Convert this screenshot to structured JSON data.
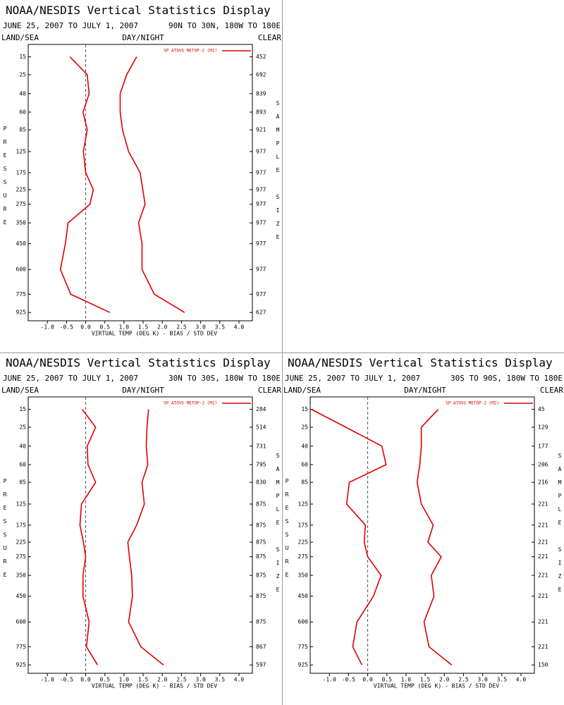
{
  "chart_data": [
    {
      "type": "line",
      "title": "NOAA/NESDIS Vertical Statistics Display",
      "subtitle": "JUNE 25, 2007 TO JULY 1, 2007",
      "region": "90N TO 30N, 180W TO 180E",
      "left_header": "LAND/SEA",
      "center_header": "DAY/NIGHT",
      "right_header": "CLEAR",
      "y_label": "PRESSURE",
      "y2_label": "SAMPLE SIZE",
      "x_label": "VIRTUAL TEMP (DEG K) - BIAS / STD DEV",
      "y": [
        15,
        25,
        40,
        60,
        85,
        125,
        175,
        225,
        275,
        350,
        450,
        600,
        775,
        925
      ],
      "sample_size": [
        452,
        692,
        839,
        893,
        921,
        977,
        977,
        977,
        977,
        977,
        977,
        977,
        977,
        627
      ],
      "series": [
        {
          "name": "SP ATOVS METOP-2 (M2)",
          "color": "#dd0000",
          "values": [
            -0.41,
            0.04,
            0.09,
            -0.07,
            0.04,
            -0.06,
            0.0,
            0.2,
            0.11,
            -0.46,
            -0.53,
            -0.66,
            -0.39,
            0.63
          ]
        },
        {
          "color": "#dd0000",
          "values": [
            1.33,
            1.07,
            0.9,
            0.9,
            0.96,
            1.12,
            1.42,
            1.49,
            1.55,
            1.38,
            1.47,
            1.47,
            1.79,
            2.58
          ]
        }
      ],
      "xlim": [
        -1.5,
        4.35
      ],
      "xticks": [
        {
          "value": -1,
          "label": "-1.0"
        },
        -0.5,
        {
          "value": 0,
          "label": "0.0"
        },
        0.5,
        {
          "value": 1,
          "label": "1.0"
        },
        1.5,
        {
          "value": 2,
          "label": "2.0"
        },
        2.5,
        {
          "value": 3,
          "label": "3.0"
        },
        3.5,
        {
          "value": 4,
          "label": "4.0"
        }
      ],
      "ylim": [
        10,
        1000
      ],
      "y_scale_exponent": 0.286,
      "yticks": [
        15,
        25,
        40,
        60,
        85,
        125,
        175,
        225,
        275,
        350,
        450,
        600,
        775,
        925
      ],
      "zero_line": true,
      "grid": false
    },
    {
      "type": "line",
      "title": "NOAA/NESDIS Vertical Statistics Display",
      "subtitle": "JUNE 25, 2007 TO JULY 1, 2007",
      "region": "30N TO 30S, 180W TO 180E",
      "left_header": "LAND/SEA",
      "center_header": "DAY/NIGHT",
      "right_header": "CLEAR",
      "y_label": "PRESSURE",
      "y2_label": "SAMPLE SIZE",
      "x_label": "VIRTUAL TEMP (DEG K) - BIAS / STD DEV",
      "y": [
        15,
        25,
        40,
        60,
        85,
        125,
        175,
        225,
        275,
        350,
        450,
        600,
        775,
        925
      ],
      "sample_size": [
        284,
        514,
        731,
        795,
        830,
        875,
        875,
        875,
        875,
        875,
        875,
        875,
        867,
        597
      ],
      "series": [
        {
          "name": "SP ATOVS METOP-2 (M2)",
          "color": "#dd0000",
          "values": [
            -0.09,
            0.26,
            0.04,
            0.06,
            0.26,
            -0.11,
            -0.15,
            -0.06,
            0.0,
            -0.07,
            -0.07,
            0.09,
            0.02,
            0.31
          ]
        },
        {
          "color": "#dd0000",
          "values": [
            1.64,
            1.6,
            1.58,
            1.62,
            1.47,
            1.53,
            1.33,
            1.1,
            1.14,
            1.2,
            1.22,
            1.12,
            1.44,
            2.03
          ]
        }
      ],
      "xlim": [
        -1.5,
        4.35
      ],
      "xticks": [
        {
          "value": -1,
          "label": "-1.0"
        },
        -0.5,
        {
          "value": 0,
          "label": "0.0"
        },
        0.5,
        {
          "value": 1,
          "label": "1.0"
        },
        1.5,
        {
          "value": 2,
          "label": "2.0"
        },
        2.5,
        {
          "value": 3,
          "label": "3.0"
        },
        3.5,
        {
          "value": 4,
          "label": "4.0"
        }
      ],
      "ylim": [
        10,
        1000
      ],
      "y_scale_exponent": 0.286,
      "yticks": [
        15,
        25,
        40,
        60,
        85,
        125,
        175,
        225,
        275,
        350,
        450,
        600,
        775,
        925
      ],
      "zero_line": true,
      "grid": false
    },
    {
      "type": "line",
      "title": "NOAA/NESDIS Vertical Statistics Display",
      "subtitle": "JUNE 25, 2007 TO JULY 1, 2007",
      "region": "30S TO 90S, 180W TO 180E",
      "left_header": "LAND/SEA",
      "center_header": "DAY/NIGHT",
      "right_header": "CLEAR",
      "y_label": "PRESSURE",
      "y2_label": "SAMPLE SIZE",
      "x_label": "VIRTUAL TEMP (DEG K) - BIAS / STD DEV",
      "y": [
        15,
        25,
        40,
        60,
        85,
        125,
        175,
        225,
        275,
        350,
        450,
        600,
        775,
        925
      ],
      "sample_size": [
        45,
        129,
        177,
        206,
        216,
        221,
        221,
        221,
        221,
        221,
        221,
        221,
        221,
        150
      ],
      "series": [
        {
          "name": "SP ATOVS METOP-2 (M2)",
          "color": "#dd0000",
          "values": [
            -1.47,
            -0.57,
            0.37,
            0.48,
            -0.48,
            -0.55,
            -0.06,
            -0.09,
            0.0,
            0.35,
            0.15,
            -0.28,
            -0.39,
            -0.15
          ]
        },
        {
          "color": "#dd0000",
          "values": [
            1.84,
            1.4,
            1.4,
            1.36,
            1.29,
            1.4,
            1.71,
            1.57,
            1.92,
            1.66,
            1.73,
            1.47,
            1.6,
            2.19
          ]
        }
      ],
      "xlim": [
        -1.5,
        4.35
      ],
      "xticks": [
        {
          "value": -1,
          "label": "-1.0"
        },
        -0.5,
        {
          "value": 0,
          "label": "0.0"
        },
        0.5,
        {
          "value": 1,
          "label": "1.0"
        },
        1.5,
        {
          "value": 2,
          "label": "2.0"
        },
        2.5,
        {
          "value": 3,
          "label": "3.0"
        },
        3.5,
        {
          "value": 4,
          "label": "4.0"
        }
      ],
      "ylim": [
        10,
        1000
      ],
      "y_scale_exponent": 0.286,
      "yticks": [
        15,
        25,
        40,
        60,
        85,
        125,
        175,
        225,
        275,
        350,
        450,
        600,
        775,
        925
      ],
      "zero_line": true,
      "grid": false
    }
  ]
}
